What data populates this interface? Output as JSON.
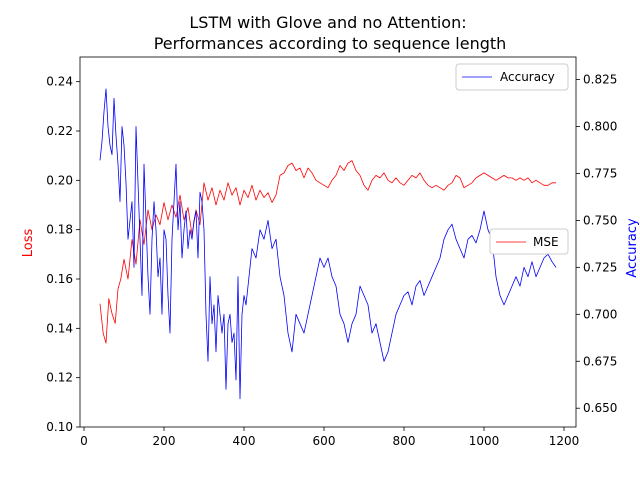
{
  "chart_data": {
    "type": "line",
    "title": [
      "LSTM with Glove and no Attention:",
      "Performances according to sequence length"
    ],
    "xlabel": "",
    "xlim": [
      -10,
      1230
    ],
    "x_ticks": [
      0,
      200,
      400,
      600,
      800,
      1000,
      1200
    ],
    "left_axis": {
      "label": "Loss",
      "label_color": "#ff0000",
      "ylim": [
        0.1,
        0.25
      ],
      "ticks": [
        0.1,
        0.12,
        0.14,
        0.16,
        0.18,
        0.2,
        0.22,
        0.24
      ],
      "tick_labels": [
        "0.10",
        "0.12",
        "0.14",
        "0.16",
        "0.18",
        "0.20",
        "0.22",
        "0.24"
      ]
    },
    "right_axis": {
      "label": "Accuracy",
      "label_color": "#0000ff",
      "ylim": [
        0.64,
        0.837
      ],
      "ticks": [
        0.65,
        0.675,
        0.7,
        0.725,
        0.75,
        0.775,
        0.8,
        0.825
      ],
      "tick_labels": [
        "0.650",
        "0.675",
        "0.700",
        "0.725",
        "0.750",
        "0.775",
        "0.800",
        "0.825"
      ]
    },
    "series": [
      {
        "name": "MSE",
        "axis": "left",
        "color": "#ff0000",
        "legend": "right-middle",
        "points": [
          [
            40,
            0.15
          ],
          [
            48,
            0.138
          ],
          [
            55,
            0.134
          ],
          [
            62,
            0.152
          ],
          [
            70,
            0.146
          ],
          [
            78,
            0.142
          ],
          [
            85,
            0.156
          ],
          [
            92,
            0.16
          ],
          [
            100,
            0.168
          ],
          [
            110,
            0.16
          ],
          [
            120,
            0.176
          ],
          [
            130,
            0.166
          ],
          [
            140,
            0.184
          ],
          [
            150,
            0.174
          ],
          [
            160,
            0.188
          ],
          [
            170,
            0.18
          ],
          [
            180,
            0.186
          ],
          [
            190,
            0.182
          ],
          [
            200,
            0.191
          ],
          [
            210,
            0.184
          ],
          [
            220,
            0.19
          ],
          [
            230,
            0.185
          ],
          [
            240,
            0.194
          ],
          [
            250,
            0.184
          ],
          [
            260,
            0.189
          ],
          [
            270,
            0.178
          ],
          [
            280,
            0.188
          ],
          [
            290,
            0.182
          ],
          [
            300,
            0.199
          ],
          [
            310,
            0.192
          ],
          [
            320,
            0.197
          ],
          [
            330,
            0.19
          ],
          [
            340,
            0.196
          ],
          [
            350,
            0.192
          ],
          [
            360,
            0.199
          ],
          [
            370,
            0.194
          ],
          [
            380,
            0.197
          ],
          [
            390,
            0.19
          ],
          [
            400,
            0.196
          ],
          [
            410,
            0.193
          ],
          [
            420,
            0.198
          ],
          [
            430,
            0.192
          ],
          [
            440,
            0.196
          ],
          [
            450,
            0.193
          ],
          [
            460,
            0.195
          ],
          [
            470,
            0.191
          ],
          [
            480,
            0.194
          ],
          [
            490,
            0.202
          ],
          [
            500,
            0.203
          ],
          [
            510,
            0.206
          ],
          [
            520,
            0.207
          ],
          [
            530,
            0.204
          ],
          [
            540,
            0.205
          ],
          [
            550,
            0.201
          ],
          [
            560,
            0.205
          ],
          [
            570,
            0.203
          ],
          [
            580,
            0.2
          ],
          [
            590,
            0.199
          ],
          [
            600,
            0.198
          ],
          [
            610,
            0.197
          ],
          [
            620,
            0.2
          ],
          [
            630,
            0.202
          ],
          [
            640,
            0.206
          ],
          [
            650,
            0.204
          ],
          [
            660,
            0.207
          ],
          [
            670,
            0.208
          ],
          [
            680,
            0.204
          ],
          [
            690,
            0.202
          ],
          [
            700,
            0.198
          ],
          [
            710,
            0.196
          ],
          [
            720,
            0.2
          ],
          [
            730,
            0.202
          ],
          [
            740,
            0.201
          ],
          [
            750,
            0.203
          ],
          [
            760,
            0.2
          ],
          [
            770,
            0.199
          ],
          [
            780,
            0.201
          ],
          [
            790,
            0.199
          ],
          [
            800,
            0.198
          ],
          [
            810,
            0.2
          ],
          [
            820,
            0.202
          ],
          [
            830,
            0.201
          ],
          [
            840,
            0.203
          ],
          [
            850,
            0.2
          ],
          [
            860,
            0.198
          ],
          [
            870,
            0.197
          ],
          [
            880,
            0.198
          ],
          [
            890,
            0.197
          ],
          [
            900,
            0.196
          ],
          [
            910,
            0.198
          ],
          [
            920,
            0.199
          ],
          [
            930,
            0.202
          ],
          [
            940,
            0.201
          ],
          [
            950,
            0.197
          ],
          [
            960,
            0.198
          ],
          [
            970,
            0.199
          ],
          [
            980,
            0.201
          ],
          [
            990,
            0.202
          ],
          [
            1000,
            0.203
          ],
          [
            1010,
            0.202
          ],
          [
            1020,
            0.201
          ],
          [
            1030,
            0.2
          ],
          [
            1040,
            0.201
          ],
          [
            1050,
            0.202
          ],
          [
            1060,
            0.201
          ],
          [
            1070,
            0.201
          ],
          [
            1080,
            0.2
          ],
          [
            1090,
            0.201
          ],
          [
            1100,
            0.2
          ],
          [
            1110,
            0.201
          ],
          [
            1120,
            0.199
          ],
          [
            1130,
            0.2
          ],
          [
            1140,
            0.199
          ],
          [
            1150,
            0.198
          ],
          [
            1160,
            0.198
          ],
          [
            1170,
            0.199
          ],
          [
            1180,
            0.199
          ]
        ]
      },
      {
        "name": "Accuracy",
        "axis": "right",
        "color": "#0000ff",
        "legend": "top-right",
        "points": [
          [
            40,
            0.782
          ],
          [
            45,
            0.792
          ],
          [
            50,
            0.808
          ],
          [
            55,
            0.82
          ],
          [
            60,
            0.8
          ],
          [
            65,
            0.79
          ],
          [
            70,
            0.785
          ],
          [
            75,
            0.815
          ],
          [
            80,
            0.795
          ],
          [
            85,
            0.78
          ],
          [
            90,
            0.76
          ],
          [
            95,
            0.8
          ],
          [
            100,
            0.79
          ],
          [
            105,
            0.77
          ],
          [
            110,
            0.74
          ],
          [
            115,
            0.75
          ],
          [
            120,
            0.76
          ],
          [
            125,
            0.725
          ],
          [
            130,
            0.8
          ],
          [
            135,
            0.77
          ],
          [
            140,
            0.74
          ],
          [
            145,
            0.71
          ],
          [
            150,
            0.78
          ],
          [
            155,
            0.75
          ],
          [
            160,
            0.72
          ],
          [
            165,
            0.7
          ],
          [
            170,
            0.74
          ],
          [
            175,
            0.76
          ],
          [
            180,
            0.745
          ],
          [
            185,
            0.72
          ],
          [
            190,
            0.73
          ],
          [
            195,
            0.7
          ],
          [
            200,
            0.745
          ],
          [
            205,
            0.74
          ],
          [
            210,
            0.71
          ],
          [
            215,
            0.69
          ],
          [
            220,
            0.74
          ],
          [
            225,
            0.76
          ],
          [
            230,
            0.78
          ],
          [
            235,
            0.745
          ],
          [
            240,
            0.76
          ],
          [
            245,
            0.73
          ],
          [
            250,
            0.745
          ],
          [
            255,
            0.755
          ],
          [
            260,
            0.735
          ],
          [
            265,
            0.745
          ],
          [
            270,
            0.74
          ],
          [
            275,
            0.75
          ],
          [
            280,
            0.755
          ],
          [
            285,
            0.73
          ],
          [
            290,
            0.765
          ],
          [
            295,
            0.76
          ],
          [
            300,
            0.745
          ],
          [
            305,
            0.7
          ],
          [
            310,
            0.675
          ],
          [
            315,
            0.72
          ],
          [
            320,
            0.695
          ],
          [
            325,
            0.705
          ],
          [
            330,
            0.68
          ],
          [
            335,
            0.71
          ],
          [
            340,
            0.7
          ],
          [
            345,
            0.69
          ],
          [
            350,
            0.7
          ],
          [
            355,
            0.66
          ],
          [
            360,
            0.695
          ],
          [
            365,
            0.7
          ],
          [
            370,
            0.685
          ],
          [
            375,
            0.69
          ],
          [
            380,
            0.665
          ],
          [
            385,
            0.72
          ],
          [
            390,
            0.655
          ],
          [
            395,
            0.7
          ],
          [
            400,
            0.71
          ],
          [
            405,
            0.705
          ],
          [
            410,
            0.715
          ],
          [
            415,
            0.725
          ],
          [
            420,
            0.735
          ],
          [
            430,
            0.73
          ],
          [
            440,
            0.745
          ],
          [
            450,
            0.74
          ],
          [
            460,
            0.75
          ],
          [
            470,
            0.735
          ],
          [
            480,
            0.74
          ],
          [
            490,
            0.72
          ],
          [
            500,
            0.71
          ],
          [
            510,
            0.69
          ],
          [
            520,
            0.68
          ],
          [
            530,
            0.7
          ],
          [
            540,
            0.695
          ],
          [
            550,
            0.69
          ],
          [
            560,
            0.7
          ],
          [
            570,
            0.71
          ],
          [
            580,
            0.72
          ],
          [
            590,
            0.73
          ],
          [
            600,
            0.725
          ],
          [
            610,
            0.73
          ],
          [
            620,
            0.72
          ],
          [
            630,
            0.715
          ],
          [
            640,
            0.7
          ],
          [
            650,
            0.695
          ],
          [
            660,
            0.685
          ],
          [
            670,
            0.695
          ],
          [
            680,
            0.7
          ],
          [
            690,
            0.715
          ],
          [
            700,
            0.71
          ],
          [
            710,
            0.705
          ],
          [
            720,
            0.69
          ],
          [
            730,
            0.695
          ],
          [
            740,
            0.685
          ],
          [
            750,
            0.675
          ],
          [
            760,
            0.68
          ],
          [
            770,
            0.69
          ],
          [
            780,
            0.7
          ],
          [
            790,
            0.705
          ],
          [
            800,
            0.71
          ],
          [
            810,
            0.712
          ],
          [
            820,
            0.705
          ],
          [
            830,
            0.715
          ],
          [
            840,
            0.718
          ],
          [
            850,
            0.71
          ],
          [
            860,
            0.715
          ],
          [
            870,
            0.72
          ],
          [
            880,
            0.725
          ],
          [
            890,
            0.73
          ],
          [
            900,
            0.74
          ],
          [
            910,
            0.745
          ],
          [
            920,
            0.748
          ],
          [
            930,
            0.74
          ],
          [
            940,
            0.735
          ],
          [
            950,
            0.73
          ],
          [
            960,
            0.74
          ],
          [
            970,
            0.742
          ],
          [
            980,
            0.738
          ],
          [
            990,
            0.745
          ],
          [
            1000,
            0.755
          ],
          [
            1010,
            0.745
          ],
          [
            1020,
            0.74
          ],
          [
            1030,
            0.72
          ],
          [
            1040,
            0.71
          ],
          [
            1050,
            0.705
          ],
          [
            1060,
            0.71
          ],
          [
            1070,
            0.715
          ],
          [
            1080,
            0.72
          ],
          [
            1090,
            0.715
          ],
          [
            1100,
            0.725
          ],
          [
            1110,
            0.72
          ],
          [
            1120,
            0.728
          ],
          [
            1130,
            0.72
          ],
          [
            1140,
            0.725
          ],
          [
            1150,
            0.73
          ],
          [
            1160,
            0.732
          ],
          [
            1170,
            0.728
          ],
          [
            1180,
            0.725
          ]
        ]
      }
    ]
  }
}
